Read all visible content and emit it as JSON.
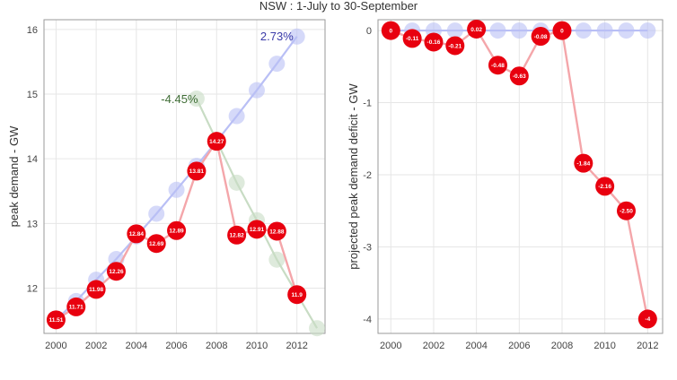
{
  "title": "NSW : 1-July to 30-September",
  "colors": {
    "panel_border": "#9a9a9a",
    "grid": "#e6e6e6",
    "forecast_up": "#b9bff5",
    "forecast_down": "#c8dcc4",
    "actual_point": "#e8000f",
    "actual_line": "#f4a6aa",
    "label_up": "#3a3aa8",
    "label_down": "#3f6d36"
  },
  "chart_data": [
    {
      "type": "line",
      "ylabel": "peak demand - GW",
      "xlim": [
        1999.4,
        2013.4
      ],
      "ylim": [
        11.3,
        16.15
      ],
      "xticks": [
        2000,
        2002,
        2004,
        2006,
        2008,
        2010,
        2012
      ],
      "yticks": [
        12,
        13,
        14,
        15,
        16
      ],
      "series": [
        {
          "role": "forecast_up",
          "x": [
            2000,
            2001,
            2002,
            2003,
            2004,
            2005,
            2006,
            2007,
            2008,
            2009,
            2010,
            2011,
            2012
          ],
          "values": [
            11.51,
            11.8,
            12.13,
            12.45,
            12.8,
            13.15,
            13.52,
            13.89,
            14.27,
            14.66,
            15.06,
            15.47,
            15.89
          ]
        },
        {
          "role": "forecast_down",
          "x": [
            2007,
            2009,
            2010,
            2011,
            2013
          ],
          "values": [
            14.93,
            13.63,
            13.05,
            12.44,
            11.38
          ]
        },
        {
          "role": "actual",
          "x": [
            2000,
            2001,
            2002,
            2003,
            2004,
            2005,
            2006,
            2007,
            2008,
            2009,
            2010,
            2011,
            2012
          ],
          "values": [
            11.51,
            11.71,
            11.98,
            12.26,
            12.84,
            12.69,
            12.89,
            13.81,
            14.27,
            12.82,
            12.91,
            12.88,
            11.9
          ],
          "labels": [
            "11.51",
            "11.71",
            "11.98",
            "12.26",
            "12.84",
            "12.69",
            "12.89",
            "13.81",
            "14.27",
            "12.82",
            "12.91",
            "12.88",
            "11.9"
          ]
        }
      ],
      "annotations": [
        {
          "text": "2.73%",
          "x": 2011.0,
          "y": 15.9,
          "role": "label_up"
        },
        {
          "text": "-4.45%",
          "x": 2006.15,
          "y": 14.93,
          "role": "label_down"
        }
      ]
    },
    {
      "type": "line",
      "ylabel": "projected peak demand deficit - GW",
      "xlim": [
        1999.4,
        2012.7
      ],
      "ylim": [
        -4.2,
        0.15
      ],
      "xticks": [
        2000,
        2002,
        2004,
        2006,
        2008,
        2010,
        2012
      ],
      "yticks": [
        0,
        -1,
        -2,
        -3,
        -4
      ],
      "series": [
        {
          "role": "forecast_up",
          "x": [
            2000,
            2001,
            2002,
            2003,
            2004,
            2005,
            2006,
            2007,
            2008,
            2009,
            2010,
            2011,
            2012
          ],
          "values": [
            0,
            0,
            0,
            0,
            0,
            0,
            0,
            0,
            0,
            0,
            0,
            0,
            0
          ]
        },
        {
          "role": "actual",
          "x": [
            2000,
            2001,
            2002,
            2003,
            2004,
            2005,
            2006,
            2007,
            2008,
            2009,
            2010,
            2011,
            2012
          ],
          "values": [
            0,
            -0.11,
            -0.16,
            -0.21,
            0.02,
            -0.48,
            -0.63,
            -0.08,
            0,
            -1.84,
            -2.16,
            -2.5,
            -4
          ],
          "labels": [
            "0",
            "-0.11",
            "-0.16",
            "-0.21",
            "0.02",
            "-0.48",
            "-0.63",
            "-0.08",
            "0",
            "-1.84",
            "-2.16",
            "-2.50",
            "-4"
          ]
        }
      ],
      "annotations": []
    }
  ]
}
